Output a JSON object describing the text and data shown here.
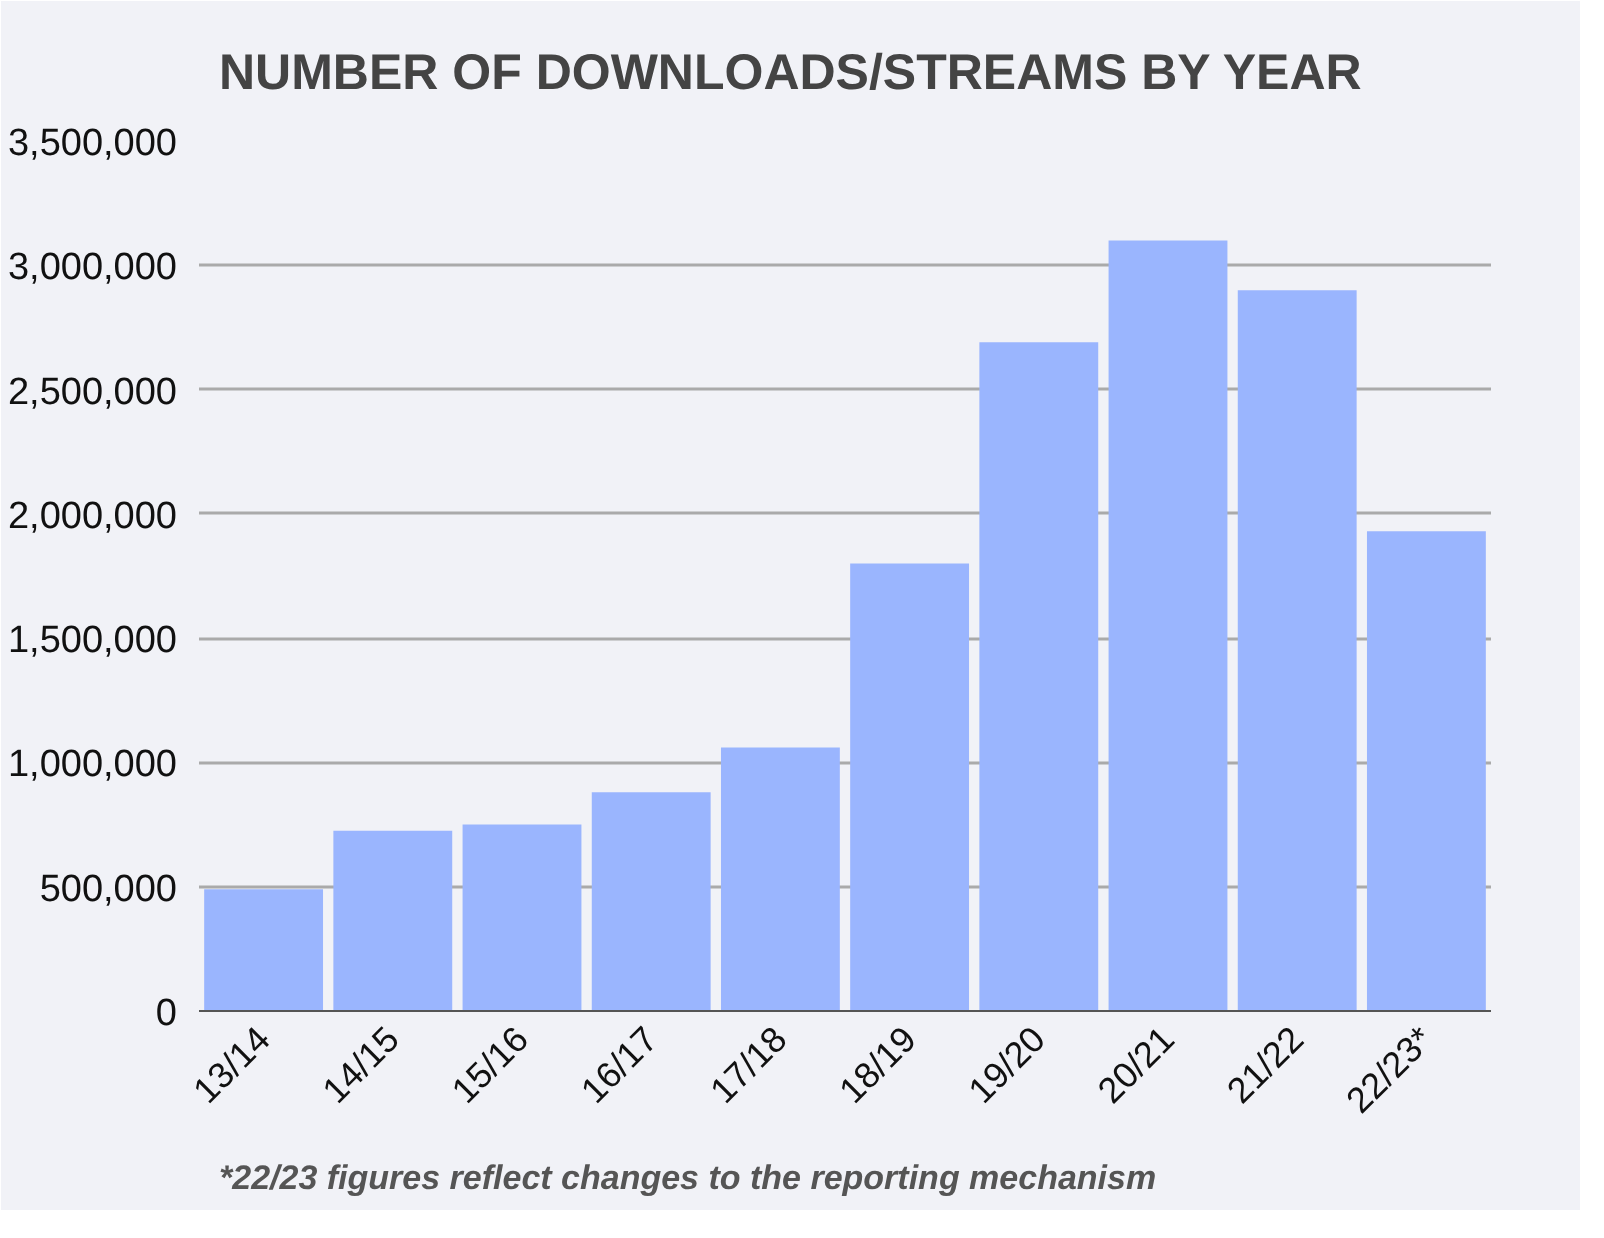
{
  "chart_data": {
    "type": "bar",
    "title": "NUMBER OF DOWNLOADS/STREAMS BY YEAR",
    "categories": [
      "13/14",
      "14/15",
      "15/16",
      "16/17",
      "17/18",
      "18/19",
      "19/20",
      "20/21",
      "21/22",
      "22/23*"
    ],
    "values": [
      490000,
      725000,
      750000,
      880000,
      1060000,
      1800000,
      2690000,
      3100000,
      2900000,
      1930000
    ],
    "color": "#9ab5fe",
    "ylim": [
      0,
      3500000
    ],
    "yticks": [
      {
        "value": 0,
        "label": "0"
      },
      {
        "value": 500000,
        "label": "500,000"
      },
      {
        "value": 1000000,
        "label": "1,000,000"
      },
      {
        "value": 1500000,
        "label": "1,500,000"
      },
      {
        "value": 2000000,
        "label": "2,000,000"
      },
      {
        "value": 2500000,
        "label": "2,500,000"
      },
      {
        "value": 3000000,
        "label": "3,000,000"
      },
      {
        "value": 3500000,
        "label": "3,500,000"
      }
    ],
    "grid": "y",
    "annotations": [
      "*22/23 figures reflect changes to the reporting mechanism"
    ]
  }
}
